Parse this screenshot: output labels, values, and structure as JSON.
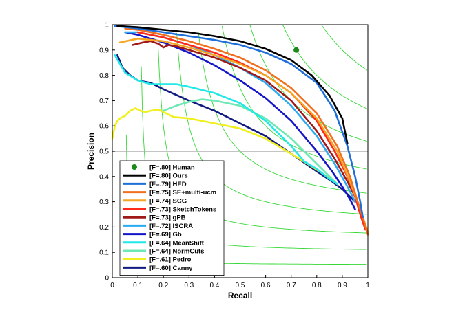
{
  "chart_data": {
    "type": "line",
    "title": "",
    "xlabel": "Recall",
    "ylabel": "Precision",
    "xlim": [
      0,
      1
    ],
    "ylim": [
      0,
      1
    ],
    "grid": false,
    "legend_position": "bottom-left",
    "x_ticks": [
      "0",
      "0.1",
      "0.2",
      "0.3",
      "0.4",
      "0.5",
      "0.6",
      "0.7",
      "0.8",
      "0.9",
      "1"
    ],
    "y_ticks": [
      "0",
      "0.1",
      "0.2",
      "0.3",
      "0.4",
      "0.5",
      "0.6",
      "0.7",
      "0.8",
      "0.9",
      "1"
    ],
    "reference_line": {
      "y": 0.5,
      "color": "#b0b0b0"
    },
    "iso_f_color": "#35d835",
    "iso_f_levels": [
      0.1,
      0.2,
      0.3,
      0.4,
      0.5,
      0.6,
      0.7,
      0.8,
      0.9
    ],
    "human_point": {
      "x": 0.72,
      "y": 0.9,
      "color": "#1a8a1a"
    },
    "legend": [
      {
        "label": "[F=.80] Human",
        "color": "#1a8a1a",
        "marker": "dot"
      },
      {
        "label": "[F=.80] Ours",
        "color": "#000000"
      },
      {
        "label": "[F=.79] HED",
        "color": "#1e6fd9"
      },
      {
        "label": "[F=.75] SE+multi-ucm",
        "color": "#f07020"
      },
      {
        "label": "[F=.74] SCG",
        "color": "#f5a623"
      },
      {
        "label": "[F=.73] SketchTokens",
        "color": "#ff2a1a"
      },
      {
        "label": "[F=.73] gPB",
        "color": "#a01818"
      },
      {
        "label": "[F=.72] ISCRA",
        "color": "#2aaaf0"
      },
      {
        "label": "[F=.69] Gb",
        "color": "#1515c8"
      },
      {
        "label": "[F=.64] MeanShift",
        "color": "#22e8e8"
      },
      {
        "label": "[F=.64] NormCuts",
        "color": "#6ee8b4"
      },
      {
        "label": "[F=.61] Pedro",
        "color": "#f0f020"
      },
      {
        "label": "[F=.60] Canny",
        "color": "#101a80"
      }
    ],
    "series": [
      {
        "name": "[F=.80] Ours",
        "color": "#000000",
        "x": [
          0.02,
          0.1,
          0.2,
          0.3,
          0.4,
          0.5,
          0.6,
          0.7,
          0.78,
          0.85,
          0.9,
          0.92
        ],
        "y": [
          0.995,
          0.99,
          0.98,
          0.97,
          0.955,
          0.935,
          0.905,
          0.86,
          0.8,
          0.72,
          0.63,
          0.53
        ]
      },
      {
        "name": "[F=.79] HED",
        "color": "#1e6fd9",
        "x": [
          0.01,
          0.1,
          0.2,
          0.3,
          0.4,
          0.5,
          0.6,
          0.7,
          0.8,
          0.87,
          0.92,
          0.95,
          0.97,
          0.98
        ],
        "y": [
          0.995,
          0.985,
          0.97,
          0.955,
          0.94,
          0.92,
          0.89,
          0.845,
          0.77,
          0.66,
          0.52,
          0.4,
          0.3,
          0.24
        ]
      },
      {
        "name": "[F=.75] SE+multi-ucm",
        "color": "#f07020",
        "x": [
          0.05,
          0.1,
          0.2,
          0.3,
          0.4,
          0.5,
          0.6,
          0.7,
          0.8,
          0.88,
          0.93,
          0.96,
          0.98,
          1.0
        ],
        "y": [
          0.985,
          0.98,
          0.96,
          0.935,
          0.905,
          0.87,
          0.82,
          0.75,
          0.65,
          0.52,
          0.4,
          0.3,
          0.24,
          0.17
        ]
      },
      {
        "name": "[F=.74] SCG",
        "color": "#f5a623",
        "x": [
          0.03,
          0.1,
          0.2,
          0.3,
          0.4,
          0.5,
          0.6,
          0.7,
          0.8,
          0.88,
          0.93,
          0.96,
          0.98,
          1.0
        ],
        "y": [
          0.93,
          0.945,
          0.935,
          0.91,
          0.88,
          0.845,
          0.8,
          0.73,
          0.63,
          0.5,
          0.38,
          0.3,
          0.24,
          0.18
        ]
      },
      {
        "name": "[F=.73] SketchTokens",
        "color": "#ff2a1a",
        "x": [
          0.1,
          0.2,
          0.3,
          0.4,
          0.5,
          0.6,
          0.7,
          0.8,
          0.87,
          0.92,
          0.95,
          0.97,
          0.99
        ],
        "y": [
          0.97,
          0.95,
          0.92,
          0.89,
          0.85,
          0.8,
          0.73,
          0.62,
          0.5,
          0.4,
          0.32,
          0.25,
          0.19
        ]
      },
      {
        "name": "[F=.73] gPB",
        "color": "#a01818",
        "x": [
          0.08,
          0.12,
          0.15,
          0.18,
          0.2,
          0.22,
          0.25,
          0.3,
          0.4,
          0.5,
          0.6,
          0.7,
          0.8,
          0.87,
          0.92,
          0.95,
          0.97
        ],
        "y": [
          0.92,
          0.93,
          0.935,
          0.925,
          0.91,
          0.92,
          0.915,
          0.9,
          0.87,
          0.83,
          0.78,
          0.7,
          0.58,
          0.47,
          0.38,
          0.32,
          0.26
        ]
      },
      {
        "name": "[F=.72] ISCRA",
        "color": "#2aaaf0",
        "x": [
          0.05,
          0.1,
          0.2,
          0.3,
          0.4,
          0.5,
          0.6,
          0.7,
          0.8,
          0.87,
          0.92,
          0.95
        ],
        "y": [
          0.97,
          0.97,
          0.95,
          0.92,
          0.88,
          0.83,
          0.77,
          0.68,
          0.56,
          0.45,
          0.36,
          0.3
        ]
      },
      {
        "name": "[F=.69] Gb",
        "color": "#1515c8",
        "x": [
          0.05,
          0.1,
          0.2,
          0.3,
          0.4,
          0.5,
          0.6,
          0.7,
          0.8,
          0.86,
          0.9,
          0.93,
          0.95
        ],
        "y": [
          0.97,
          0.96,
          0.93,
          0.89,
          0.84,
          0.78,
          0.71,
          0.62,
          0.5,
          0.42,
          0.36,
          0.31,
          0.27
        ]
      },
      {
        "name": "[F=.64] MeanShift",
        "color": "#22e8e8",
        "x": [
          0.01,
          0.05,
          0.1,
          0.15,
          0.2,
          0.25,
          0.3,
          0.4,
          0.5,
          0.6,
          0.7,
          0.75,
          0.8,
          0.85,
          0.88
        ],
        "y": [
          0.88,
          0.81,
          0.78,
          0.765,
          0.765,
          0.765,
          0.755,
          0.73,
          0.69,
          0.62,
          0.52,
          0.46,
          0.43,
          0.39,
          0.37
        ]
      },
      {
        "name": "[F=.64] NormCuts",
        "color": "#6ee8b4",
        "x": [
          0.2,
          0.25,
          0.3,
          0.35,
          0.4,
          0.45,
          0.5,
          0.6,
          0.7,
          0.78,
          0.84,
          0.88
        ],
        "y": [
          0.66,
          0.68,
          0.695,
          0.705,
          0.7,
          0.69,
          0.68,
          0.63,
          0.55,
          0.47,
          0.41,
          0.37
        ]
      },
      {
        "name": "[F=.61] Pedro",
        "color": "#f0f020",
        "x": [
          0.0,
          0.01,
          0.02,
          0.03,
          0.05,
          0.07,
          0.09,
          0.11,
          0.13,
          0.15,
          0.18,
          0.2,
          0.22,
          0.24,
          0.3,
          0.4,
          0.5,
          0.6,
          0.7,
          0.78,
          0.84,
          0.88
        ],
        "y": [
          0.55,
          0.6,
          0.62,
          0.63,
          0.64,
          0.66,
          0.67,
          0.66,
          0.655,
          0.66,
          0.665,
          0.655,
          0.645,
          0.635,
          0.63,
          0.61,
          0.59,
          0.55,
          0.49,
          0.44,
          0.4,
          0.37
        ]
      },
      {
        "name": "[F=.60] Canny",
        "color": "#101a80",
        "x": [
          0.02,
          0.04,
          0.07,
          0.1,
          0.15,
          0.2,
          0.3,
          0.4,
          0.5,
          0.6,
          0.7,
          0.8,
          0.86,
          0.9,
          0.93,
          0.95
        ],
        "y": [
          0.88,
          0.83,
          0.8,
          0.78,
          0.77,
          0.745,
          0.7,
          0.66,
          0.61,
          0.56,
          0.49,
          0.42,
          0.38,
          0.35,
          0.32,
          0.3
        ]
      }
    ]
  }
}
